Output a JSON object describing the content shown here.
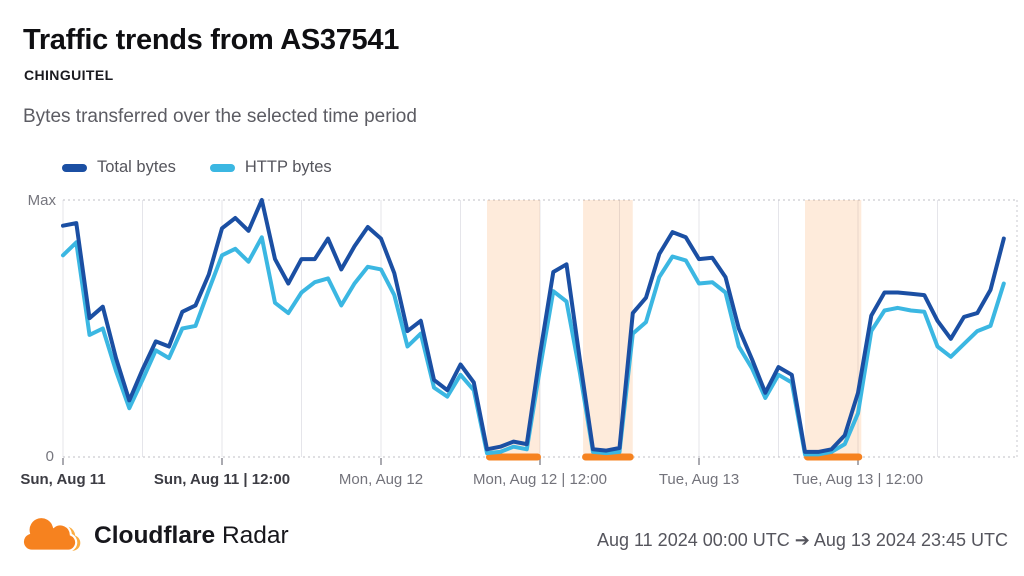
{
  "header": {
    "title": "Traffic trends from AS37541",
    "org": "CHINGUITEL",
    "description": "Bytes transferred over the selected time period"
  },
  "legend": {
    "items": [
      {
        "label": "Total bytes",
        "color": "#1B4FA3"
      },
      {
        "label": "HTTP bytes",
        "color": "#3BB7E2"
      }
    ]
  },
  "chart_data": {
    "type": "line",
    "title": "Traffic trends from AS37541",
    "xlabel": "",
    "ylabel": "",
    "grid": "vertical-6h",
    "legend_position": "top-left",
    "y_axis": {
      "top_label": "Max",
      "bottom_label": "0",
      "range": [
        0,
        1
      ]
    },
    "x_axis": {
      "start": "Aug 11 2024 00:00 UTC",
      "end": "Aug 13 2024 23:45 UTC",
      "range_hours": [
        0,
        72
      ],
      "gridline_every_hours": 6,
      "tick_labels": [
        {
          "hour": 0,
          "label": "Sun, Aug 11",
          "bold": true
        },
        {
          "hour": 12,
          "label": "Sun, Aug 11 | 12:00",
          "bold": true
        },
        {
          "hour": 24,
          "label": "Mon, Aug 12",
          "bold": false
        },
        {
          "hour": 36,
          "label": "Mon, Aug 12 | 12:00",
          "bold": false
        },
        {
          "hour": 48,
          "label": "Tue, Aug 13",
          "bold": false
        },
        {
          "hour": 60,
          "label": "Tue, Aug 13 | 12:00",
          "bold": false
        }
      ]
    },
    "series": [
      {
        "name": "Total bytes",
        "color": "#1B4FA3",
        "unit": "fraction_of_max",
        "values": [
          0.9,
          0.91,
          0.54,
          0.585,
          0.385,
          0.22,
          0.34,
          0.45,
          0.43,
          0.565,
          0.59,
          0.71,
          0.89,
          0.93,
          0.88,
          1.0,
          0.77,
          0.675,
          0.77,
          0.77,
          0.85,
          0.73,
          0.82,
          0.895,
          0.85,
          0.715,
          0.49,
          0.53,
          0.3,
          0.26,
          0.36,
          0.29,
          0.03,
          0.04,
          0.06,
          0.05,
          0.4,
          0.72,
          0.75,
          0.38,
          0.03,
          0.025,
          0.035,
          0.56,
          0.62,
          0.79,
          0.875,
          0.855,
          0.77,
          0.775,
          0.7,
          0.5,
          0.38,
          0.25,
          0.35,
          0.32,
          0.02,
          0.02,
          0.03,
          0.085,
          0.25,
          0.55,
          0.64,
          0.64,
          0.635,
          0.63,
          0.53,
          0.46,
          0.545,
          0.56,
          0.65,
          0.85
        ]
      },
      {
        "name": "HTTP bytes",
        "color": "#3BB7E2",
        "unit": "fraction_of_max",
        "values": [
          0.785,
          0.835,
          0.475,
          0.5,
          0.335,
          0.19,
          0.3,
          0.415,
          0.385,
          0.5,
          0.51,
          0.65,
          0.785,
          0.81,
          0.76,
          0.855,
          0.6,
          0.56,
          0.64,
          0.68,
          0.695,
          0.59,
          0.675,
          0.74,
          0.73,
          0.63,
          0.43,
          0.48,
          0.27,
          0.235,
          0.32,
          0.26,
          0.015,
          0.02,
          0.04,
          0.03,
          0.345,
          0.645,
          0.605,
          0.33,
          0.02,
          0.015,
          0.02,
          0.48,
          0.525,
          0.7,
          0.78,
          0.765,
          0.675,
          0.68,
          0.64,
          0.43,
          0.345,
          0.23,
          0.32,
          0.29,
          0.01,
          0.01,
          0.02,
          0.05,
          0.17,
          0.49,
          0.57,
          0.58,
          0.57,
          0.565,
          0.43,
          0.39,
          0.44,
          0.49,
          0.51,
          0.675
        ]
      }
    ],
    "anomaly_regions": {
      "bar_color": "#F6821F",
      "fill_color": "rgba(246,130,31,0.16)",
      "ranges_hours": [
        [
          32,
          36
        ],
        [
          39.25,
          43
        ],
        [
          56,
          60.25
        ]
      ]
    }
  },
  "footer": {
    "brand_bold": "Cloudflare",
    "brand_regular": "Radar",
    "date_range": "Aug 11 2024 00:00 UTC ➔ Aug 13 2024 23:45 UTC"
  }
}
